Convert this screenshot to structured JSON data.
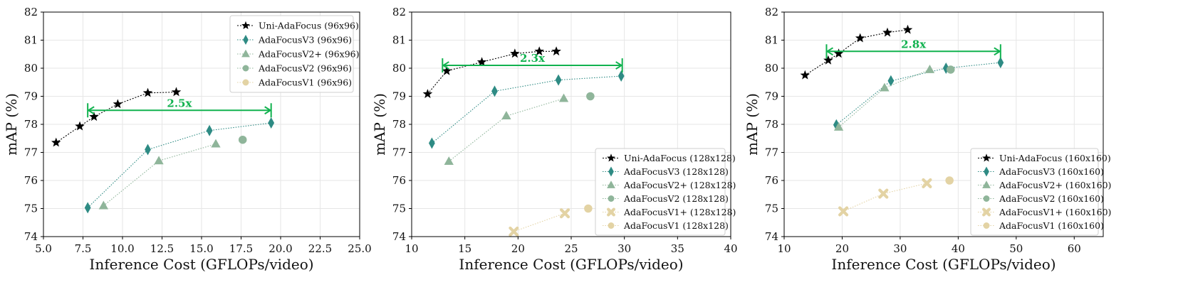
{
  "chart_data": [
    {
      "type": "line",
      "xlabel": "Inference Cost (GFLOPs/video)",
      "ylabel": "mAP (%)",
      "xlim": [
        5.0,
        25.0
      ],
      "ylim": [
        74,
        82
      ],
      "xticks": [
        5.0,
        7.5,
        10.0,
        12.5,
        15.0,
        17.5,
        20.0,
        22.5,
        25.0
      ],
      "xtick_labels": [
        "5.0",
        "7.5",
        "10.0",
        "12.5",
        "15.0",
        "17.5",
        "20.0",
        "22.5",
        "25.0"
      ],
      "yticks": [
        74,
        75,
        76,
        77,
        78,
        79,
        80,
        81,
        82
      ],
      "ytick_labels": [
        "74",
        "75",
        "76",
        "77",
        "78",
        "79",
        "80",
        "81",
        "82"
      ],
      "grid": true,
      "legend_position": "top-right",
      "series": [
        {
          "name": "Uni-AdaFocus (96x96)",
          "marker": "star",
          "color": "#000000",
          "x": [
            5.8,
            7.3,
            8.2,
            9.7,
            11.6,
            13.4
          ],
          "y": [
            77.35,
            77.93,
            78.27,
            78.72,
            79.12,
            79.15
          ]
        },
        {
          "name": "AdaFocusV3 (96x96)",
          "marker": "diamond",
          "color": "#2e8b84",
          "x": [
            7.8,
            11.6,
            15.5,
            19.4
          ],
          "y": [
            75.03,
            77.1,
            77.78,
            78.05
          ]
        },
        {
          "name": "AdaFocusV2+ (96x96)",
          "marker": "triangle",
          "color": "#8fb59a",
          "x": [
            8.8,
            12.3,
            15.9
          ],
          "y": [
            75.1,
            76.7,
            77.3
          ]
        },
        {
          "name": "AdaFocusV2 (96x96)",
          "marker": "circle",
          "color": "#8fb59a",
          "x": [
            17.6
          ],
          "y": [
            77.45
          ]
        },
        {
          "name": "AdaFocusV1 (96x96)",
          "marker": "circle",
          "color": "#e3d3a4",
          "x": [],
          "y": []
        }
      ],
      "annotation": {
        "label": "2.5x",
        "x_from": 7.8,
        "x_to": 19.4,
        "y": 78.5
      }
    },
    {
      "type": "line",
      "xlabel": "Inference Cost (GFLOPs/video)",
      "ylabel": "mAP (%)",
      "xlim": [
        10,
        40
      ],
      "ylim": [
        74,
        82
      ],
      "xticks": [
        10,
        15,
        20,
        25,
        30,
        35,
        40
      ],
      "xtick_labels": [
        "10",
        "15",
        "20",
        "25",
        "30",
        "35",
        "40"
      ],
      "yticks": [
        74,
        75,
        76,
        77,
        78,
        79,
        80,
        81,
        82
      ],
      "ytick_labels": [
        "74",
        "75",
        "76",
        "77",
        "78",
        "79",
        "80",
        "81",
        "82"
      ],
      "grid": true,
      "legend_position": "bottom-right",
      "series": [
        {
          "name": "Uni-AdaFocus (128x128)",
          "marker": "star",
          "color": "#000000",
          "x": [
            11.5,
            13.3,
            16.6,
            19.7,
            22.0,
            23.6
          ],
          "y": [
            79.08,
            79.9,
            80.22,
            80.52,
            80.6,
            80.6
          ]
        },
        {
          "name": "AdaFocusV3 (128x128)",
          "marker": "diamond",
          "color": "#2e8b84",
          "x": [
            11.9,
            17.8,
            23.8,
            29.7
          ],
          "y": [
            77.33,
            79.18,
            79.58,
            79.72
          ]
        },
        {
          "name": "AdaFocusV2+ (128x128)",
          "marker": "triangle",
          "color": "#8fb59a",
          "x": [
            13.5,
            18.9,
            24.3
          ],
          "y": [
            76.68,
            78.3,
            78.92
          ]
        },
        {
          "name": "AdaFocusV2 (128x128)",
          "marker": "circle",
          "color": "#8fb59a",
          "x": [
            26.8
          ],
          "y": [
            79.0
          ]
        },
        {
          "name": "AdaFocusV1+ (128x128)",
          "marker": "cross",
          "color": "#e3d3a4",
          "x": [
            19.6,
            24.4
          ],
          "y": [
            74.18,
            74.83
          ]
        },
        {
          "name": "AdaFocusV1 (128x128)",
          "marker": "circle",
          "color": "#e3d3a4",
          "x": [
            26.6
          ],
          "y": [
            75.0
          ]
        }
      ],
      "annotation": {
        "label": "2.3x",
        "x_from": 12.9,
        "x_to": 29.8,
        "y": 80.1
      }
    },
    {
      "type": "line",
      "xlabel": "Inference Cost (GFLOPs/video)",
      "ylabel": "mAP (%)",
      "xlim": [
        10,
        65
      ],
      "ylim": [
        74,
        82
      ],
      "xticks": [
        10,
        20,
        30,
        40,
        50,
        60
      ],
      "xtick_labels": [
        "10",
        "20",
        "30",
        "40",
        "50",
        "60"
      ],
      "yticks": [
        74,
        75,
        76,
        77,
        78,
        79,
        80,
        81,
        82
      ],
      "ytick_labels": [
        "74",
        "75",
        "76",
        "77",
        "78",
        "79",
        "80",
        "81",
        "82"
      ],
      "grid": true,
      "legend_position": "bottom-right",
      "series": [
        {
          "name": "Uni-AdaFocus (160x160)",
          "marker": "star",
          "color": "#000000",
          "x": [
            13.6,
            17.6,
            19.4,
            23.1,
            27.8,
            31.3
          ],
          "y": [
            79.75,
            80.28,
            80.52,
            81.07,
            81.27,
            81.37
          ]
        },
        {
          "name": "AdaFocusV3 (160x160)",
          "marker": "diamond",
          "color": "#2e8b84",
          "x": [
            19.0,
            28.4,
            37.9,
            47.3
          ],
          "y": [
            77.98,
            79.55,
            80.0,
            80.2
          ]
        },
        {
          "name": "AdaFocusV2+ (160x160)",
          "marker": "triangle",
          "color": "#8fb59a",
          "x": [
            19.4,
            27.3,
            35.1
          ],
          "y": [
            77.9,
            79.3,
            79.95
          ]
        },
        {
          "name": "AdaFocusV2 (160x160)",
          "marker": "circle",
          "color": "#8fb59a",
          "x": [
            38.7
          ],
          "y": [
            79.95
          ]
        },
        {
          "name": "AdaFocusV1+ (160x160)",
          "marker": "cross",
          "color": "#e3d3a4",
          "x": [
            20.2,
            27.1,
            34.6
          ],
          "y": [
            74.9,
            75.53,
            75.9
          ]
        },
        {
          "name": "AdaFocusV1 (160x160)",
          "marker": "circle",
          "color": "#e3d3a4",
          "x": [
            38.5
          ],
          "y": [
            76.0
          ]
        }
      ],
      "annotation": {
        "label": "2.8x",
        "x_from": 17.3,
        "x_to": 47.3,
        "y": 80.6
      }
    }
  ]
}
